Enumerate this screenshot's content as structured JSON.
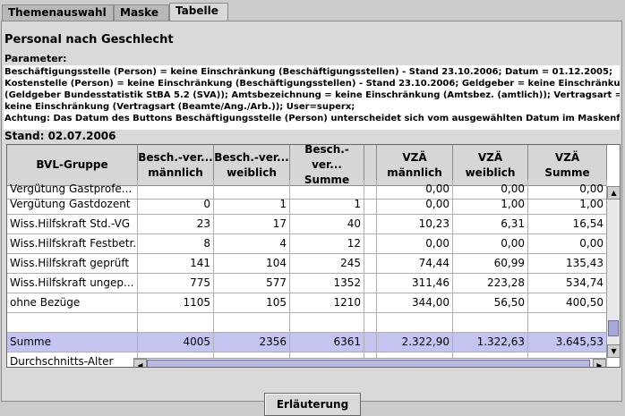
{
  "tabs": [
    "Themenauswahl",
    "Maske",
    "Tabelle"
  ],
  "title": "Personal nach Geschlecht",
  "parameter_label": "Parameter:",
  "parameters": [
    "Beschäftigungsstelle (Person) = keine Einschränkung (Beschäftigungsstellen) - Stand 23.10.2006; Datum = 01.12.2005;",
    "Kostenstelle (Person) = keine Einschränkung (Beschäftigungsstellen) - Stand 23.10.2006; Geldgeber = keine Einschränkung",
    "(Geldgeber Bundesstatistik StBA 5.2 (SVA)); Amtsbezeichnung = keine Einschränkung (Amtsbez. (amtlich)); Vertragsart =",
    "keine Einschränkung (Vertragsart (Beamte/Ang./Arb.)); User=superx;",
    "Achtung: Das Datum des Buttons Beschäftigungsstelle (Person) unterscheidet sich vom ausgewählten Datum im Maskenfeld."
  ],
  "stand": "Stand: 02.07.2006",
  "table": {
    "headers": [
      [
        "BVL-Gruppe"
      ],
      [
        "Besch.-ver...",
        "männlich"
      ],
      [
        "Besch.-ver...",
        "weiblich"
      ],
      [
        "Besch.-ver...",
        "Summe"
      ],
      [
        ""
      ],
      [
        "VZÄ",
        "männlich"
      ],
      [
        "VZÄ",
        "weiblich"
      ],
      [
        "VZÄ",
        "Summe"
      ]
    ],
    "rows": [
      [
        "Vergütung Gastprofe...",
        "",
        "",
        "",
        "",
        "0,00",
        "0,00",
        "0,00"
      ],
      [
        "Vergütung Gastdozent",
        "0",
        "1",
        "1",
        "",
        "0,00",
        "1,00",
        "1,00"
      ],
      [
        "Wiss.Hilfskraft Std.-VG",
        "23",
        "17",
        "40",
        "",
        "10,23",
        "6,31",
        "16,54"
      ],
      [
        "Wiss.Hilfskraft Festbetr.",
        "8",
        "4",
        "12",
        "",
        "0,00",
        "0,00",
        "0,00"
      ],
      [
        "Wiss.Hilfskraft geprüft",
        "141",
        "104",
        "245",
        "",
        "74,44",
        "60,99",
        "135,43"
      ],
      [
        "Wiss.Hilfskraft ungep...",
        "775",
        "577",
        "1352",
        "",
        "311,46",
        "223,28",
        "534,74"
      ],
      [
        "ohne Bezüge",
        "1105",
        "105",
        "1210",
        "",
        "344,00",
        "56,50",
        "400,50"
      ],
      [
        "",
        "",
        "",
        "",
        "",
        "",
        "",
        ""
      ],
      [
        "Summe",
        "4005",
        "2356",
        "6361",
        "",
        "2.322,90",
        "1.322,63",
        "3.645,53"
      ],
      [
        "Durchschnitts-Alter",
        "",
        "",
        "",
        "",
        "",
        "",
        ""
      ]
    ]
  },
  "button_label": "Erläuterung"
}
